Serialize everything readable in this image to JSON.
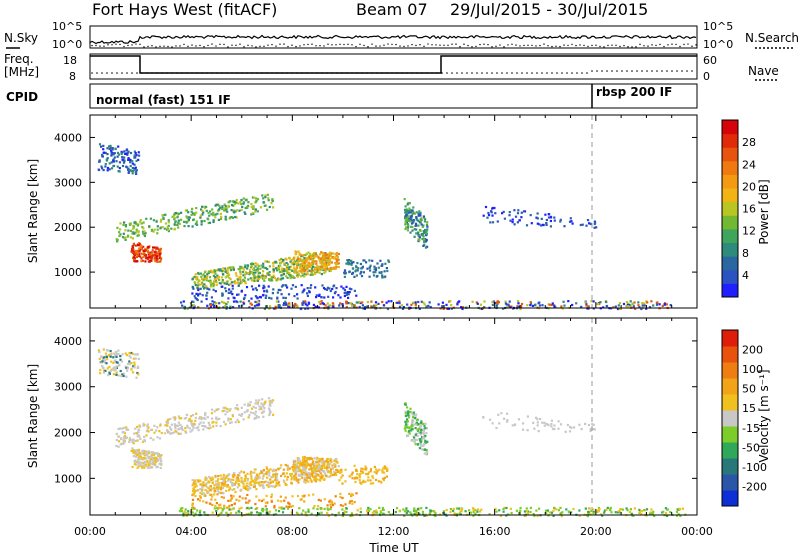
{
  "header": {
    "radar": "Fort Hays West (fitACF)",
    "beam": "Beam 07",
    "dates": "29/Jul/2015 - 30/Jul/2015"
  },
  "sky_panel": {
    "left_label": "N.Sky",
    "right_label": "N.Search",
    "left_ticks": [
      "10^5",
      "10^0"
    ],
    "right_ticks": [
      "10^5",
      "10^0"
    ]
  },
  "freq_panel": {
    "left_label_1": "Freq.",
    "left_label_2": "[MHz]",
    "right_label": "Nave",
    "left_ticks": [
      "18",
      "8"
    ],
    "right_ticks": [
      "60",
      "0"
    ]
  },
  "cpid": {
    "label": "CPID",
    "mode1": "normal (fast) 151 IF",
    "mode2": "rbsp 200 IF"
  },
  "chart_data": [
    {
      "type": "heatmap",
      "name": "power",
      "ylabel": "Slant Range [km]",
      "xlabel": "",
      "ylim": [
        200,
        4500
      ],
      "yticks": [
        "4000",
        "3000",
        "2000",
        "1000"
      ],
      "colorbar": {
        "label": "Power [dB]",
        "min": 0,
        "max": 32,
        "ticks": [
          "28",
          "24",
          "20",
          "16",
          "12",
          "8",
          "4"
        ],
        "colors": [
          "#1f1fff",
          "#2b52c2",
          "#2a66a0",
          "#2e8a7a",
          "#3fa55c",
          "#72b832",
          "#b9c522",
          "#f1b415",
          "#f49a12",
          "#f07a10",
          "#e8540d",
          "#e02a0a",
          "#d4040a"
        ]
      },
      "dashed_time": "20:00"
    },
    {
      "type": "heatmap",
      "name": "velocity",
      "ylabel": "Slant Range [km]",
      "xlabel": "Time UT",
      "ylim": [
        200,
        4500
      ],
      "yticks": [
        "4000",
        "3000",
        "2000",
        "1000"
      ],
      "colorbar": {
        "label": "Velocity [m s⁻¹]",
        "ticks": [
          "200",
          "100",
          "50",
          "15",
          "-15",
          "-50",
          "-100",
          "-200"
        ],
        "colors": [
          "#0d2fd6",
          "#2b56a8",
          "#28787a",
          "#2fa85a",
          "#7ccc2a",
          "#c8c8c8",
          "#f0c01e",
          "#f2a418",
          "#ef7e12",
          "#e8520e",
          "#de1e0a"
        ]
      },
      "xticks": [
        "00:00",
        "04:00",
        "08:00",
        "12:00",
        "16:00",
        "20:00",
        "00:00"
      ]
    }
  ],
  "colors": {
    "axis": "#000000",
    "background": "#ffffff",
    "dashed_line": "#999999"
  }
}
